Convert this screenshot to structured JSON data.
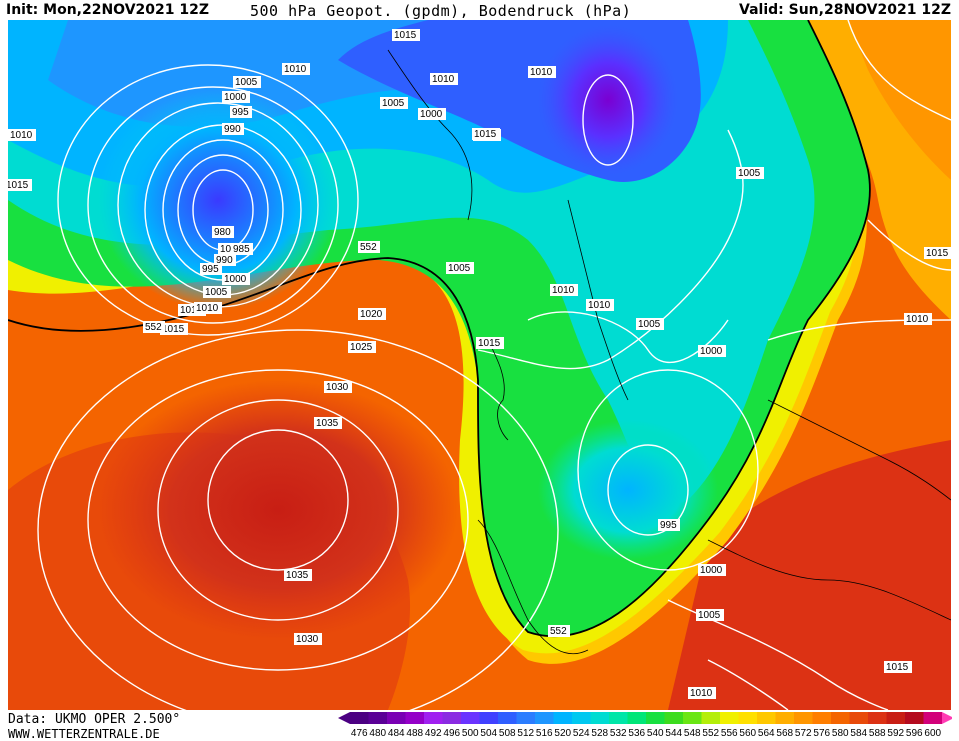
{
  "header": {
    "init": "Init: Mon,22NOV2021 12Z",
    "title": "500 hPa Geopot. (gpdm), Bodendruck (hPa)",
    "valid": "Valid: Sun,28NOV2021 12Z"
  },
  "footer": {
    "data_source": "Data: UKMO OPER 2.500°",
    "website": "WWW.WETTERZENTRALE.DE"
  },
  "scale": {
    "values": [
      "476",
      "480",
      "484",
      "488",
      "492",
      "496",
      "500",
      "504",
      "508",
      "512",
      "516",
      "520",
      "524",
      "528",
      "532",
      "536",
      "540",
      "544",
      "548",
      "552",
      "556",
      "560",
      "564",
      "568",
      "572",
      "576",
      "580",
      "584",
      "588",
      "592",
      "596",
      "600"
    ],
    "colors": [
      "#4b0082",
      "#5a0096",
      "#7a00b4",
      "#9400c8",
      "#a020f0",
      "#8a2be2",
      "#6a33ff",
      "#4040ff",
      "#2f5fff",
      "#2b7dff",
      "#1e96ff",
      "#00b4ff",
      "#00c8f0",
      "#00dcd2",
      "#00e6a8",
      "#00e678",
      "#18e040",
      "#3cdc1e",
      "#6ae614",
      "#b4ee0a",
      "#f0f000",
      "#ffe000",
      "#ffc800",
      "#ffae00",
      "#ff9600",
      "#ff7e00",
      "#f46400",
      "#e84a0a",
      "#dc3214",
      "#c81e14",
      "#b40a1e",
      "#d2007a"
    ]
  },
  "contour_labels": [
    "1015",
    "1010",
    "1010",
    "1010",
    "1005",
    "1000",
    "995",
    "990",
    "1015",
    "1010",
    "1005",
    "1000",
    "1005",
    "1010",
    "1015",
    "1015",
    "980",
    "985",
    "990",
    "995",
    "1000",
    "1005",
    "1010",
    "552",
    "552",
    "1015",
    "1010",
    "1005",
    "1005",
    "1010",
    "1010",
    "1005",
    "1000",
    "1020",
    "1025",
    "1015",
    "1030",
    "1035",
    "1035",
    "1030",
    "995",
    "1000",
    "1005",
    "1015",
    "1015",
    "1015",
    "552",
    "1010",
    "1015"
  ]
}
